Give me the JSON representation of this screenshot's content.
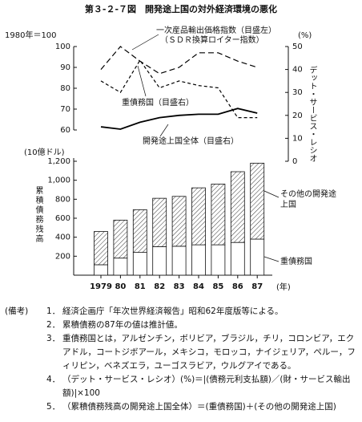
{
  "title": "第３-２-７図　開発途上国の対外経済環境の悪化",
  "chart_data": [
    {
      "type": "line",
      "categories": [
        null,
        null,
        null,
        null,
        null,
        null,
        null,
        null,
        null
      ],
      "ylabel": "1980年＝100",
      "ylim": [
        60,
        100
      ],
      "yticks": [
        60,
        70,
        80,
        90,
        100
      ],
      "y2label": "デット・サービス・レシオ",
      "y2unit": "(%)",
      "y2lim": [
        0,
        50
      ],
      "y2ticks": [
        0,
        10,
        20,
        30,
        40,
        50
      ],
      "series": [
        {
          "name": "一次産品輸出価格指数（目盛左）",
          "color": "#000000",
          "line_style": "dashed",
          "values": [
            89,
            100,
            93,
            87,
            90,
            97,
            97,
            93,
            90
          ]
        },
        {
          "name": "重債務国（目盛右）",
          "color": "#000000",
          "line_style": "dashed",
          "axis": "y2",
          "values": [
            35,
            30,
            44,
            32,
            35,
            33,
            32,
            19,
            19
          ]
        },
        {
          "name": "開発途上国全体（目盛右）",
          "color": "#000000",
          "line_style": "solid",
          "axis": "y2",
          "values": [
            15,
            14,
            17,
            19,
            20,
            20.5,
            20.5,
            23,
            21
          ]
        }
      ],
      "annotations": [
        "（ＳＤＲ換算ロイター指数）"
      ]
    },
    {
      "type": "bar",
      "stacked": true,
      "categories": [
        "1979",
        "80",
        "81",
        "82",
        "83",
        "84",
        "85",
        "86",
        "87"
      ],
      "xlabel": "(年)",
      "ylabel": "累積債務残高",
      "yunit": "(10億ドル)",
      "ylim": [
        0,
        1200
      ],
      "yticks": [
        200,
        400,
        600,
        800,
        {
          "value": 1000,
          "label": "1,000"
        },
        {
          "value": 1200,
          "label": "1,200"
        }
      ],
      "series": [
        {
          "name": "重債務国",
          "color": "#ffffff",
          "values": [
            110,
            180,
            240,
            300,
            305,
            320,
            320,
            345,
            380
          ]
        },
        {
          "name": "その他の開発途上国",
          "color": "#000000",
          "pattern": "hatch",
          "values": [
            350,
            400,
            450,
            510,
            525,
            600,
            640,
            745,
            800
          ]
        }
      ]
    }
  ],
  "notes": {
    "label": "(備考)",
    "items": [
      {
        "number": "1．",
        "text": "経済企画庁「年次世界経済報告」昭和62年度版等による。"
      },
      {
        "number": "2．",
        "text": "累積債務の87年の値は推計値。"
      },
      {
        "number": "3．",
        "text": "重債務国とは，アルゼンチン，ボリビア，ブラジル，チリ，コロンビア，エクアドル，コートジボアール，メキシコ，モロッコ，ナイジェリア，ペルー，フィリピン，ベネズエラ，ユーゴスラビア，ウルグアイである。"
      },
      {
        "number": "4．",
        "text": "（デット・サービス・レシオ）(%)＝|(債務元利支払額)／(財・サービス輸出額)|×100"
      },
      {
        "number": "5．",
        "text": "（累積債務残高の開発途上国全体）＝(重債務国)＋(その他の開発途上国)"
      }
    ]
  }
}
